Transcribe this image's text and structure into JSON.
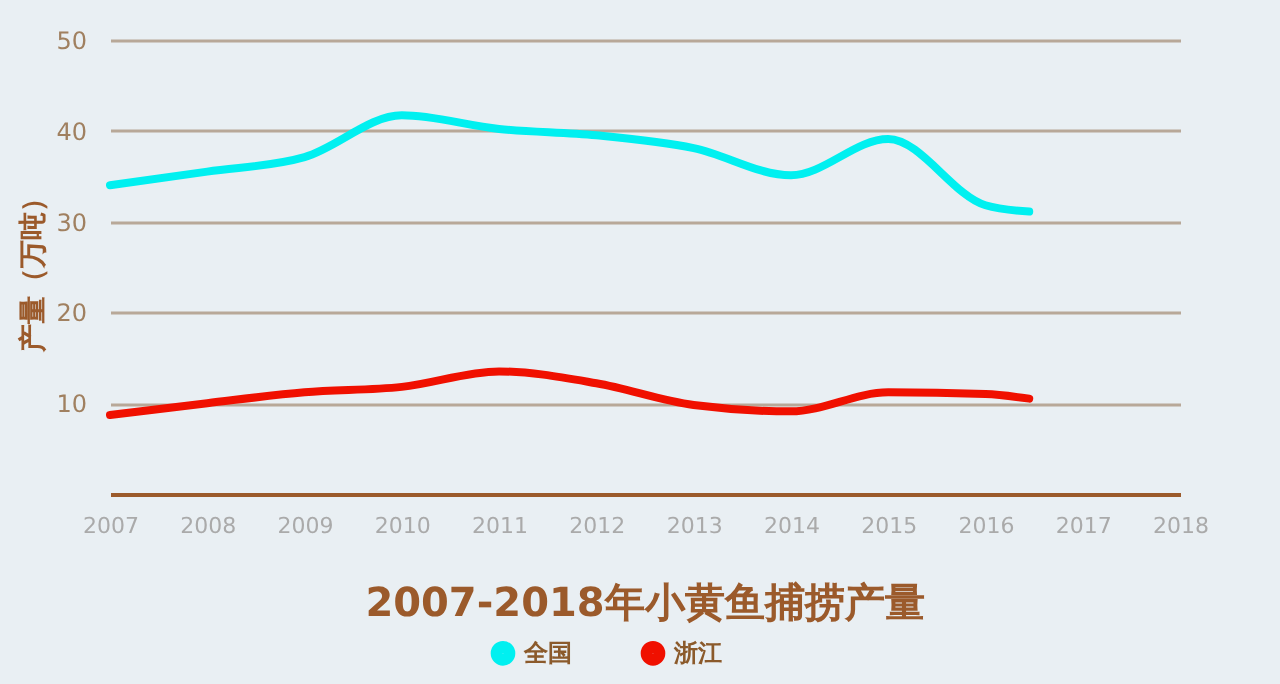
{
  "chart_data": {
    "type": "line",
    "title": "2007-2018年小黄鱼捕捞产量",
    "ylabel": "产量（万吨）",
    "x": [
      2007,
      2008,
      2009,
      2010,
      2011,
      2012,
      2013,
      2014,
      2015,
      2016,
      2016.45
    ],
    "series": [
      {
        "name": "全国",
        "color": "#00f0f0",
        "values": [
          34.0,
          35.5,
          37.1,
          41.7,
          40.2,
          39.5,
          38.1,
          35.1,
          39.1,
          31.8,
          31.1
        ]
      },
      {
        "name": "浙江",
        "color": "#f01000",
        "values": [
          8.7,
          10.0,
          11.2,
          11.8,
          13.5,
          12.2,
          9.8,
          9.1,
          11.2,
          11.0,
          10.5
        ]
      }
    ],
    "xlim": [
      2007,
      2018
    ],
    "xticks": [
      2007,
      2008,
      2009,
      2010,
      2011,
      2012,
      2013,
      2014,
      2015,
      2016,
      2017,
      2018
    ],
    "ylim": [
      0,
      50
    ],
    "yticks": [
      {
        "value": 0,
        "label": null
      },
      10,
      20,
      30,
      40,
      50
    ],
    "grid": "y",
    "legend": "bottom",
    "line_style": "solid"
  }
}
